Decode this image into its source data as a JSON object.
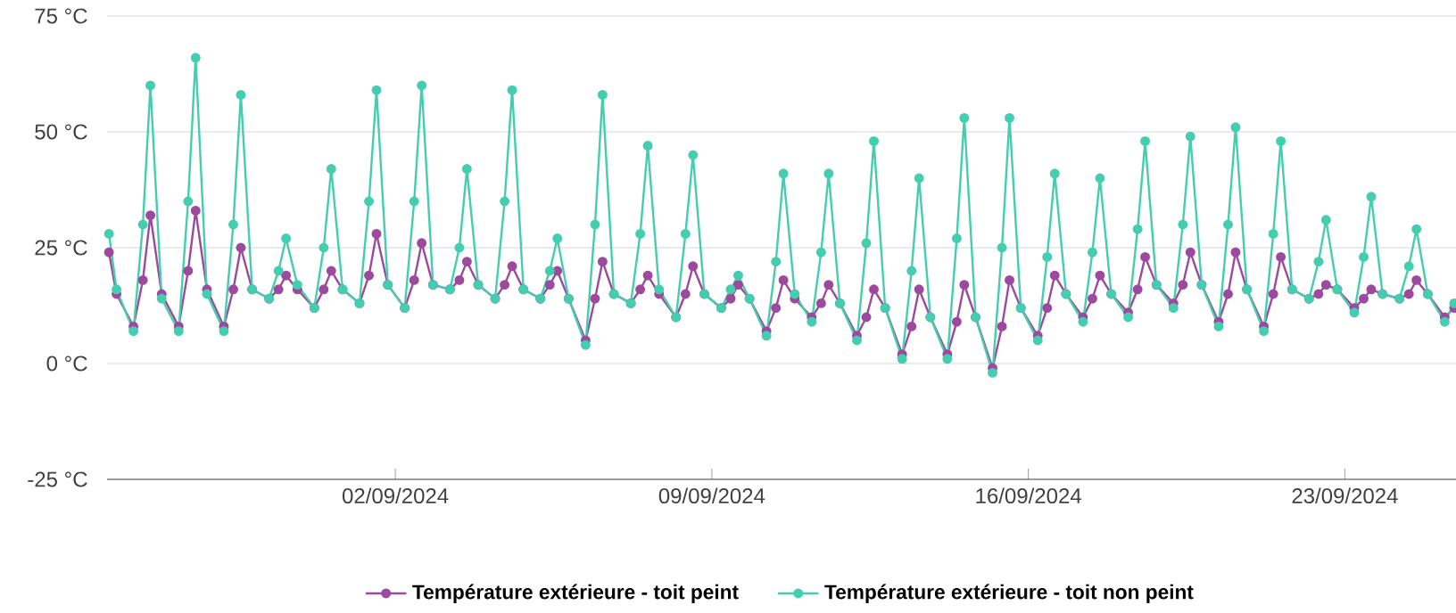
{
  "chart_data": {
    "type": "line",
    "x": [
      "2024-08-26T16:00",
      "2024-08-26T20:00",
      "2024-08-27T05:00",
      "2024-08-27T10:00",
      "2024-08-27T14:00",
      "2024-08-27T20:00",
      "2024-08-28T05:00",
      "2024-08-28T10:00",
      "2024-08-28T14:00",
      "2024-08-28T20:00",
      "2024-08-29T05:00",
      "2024-08-29T10:00",
      "2024-08-29T14:00",
      "2024-08-29T20:00",
      "2024-08-30T05:00",
      "2024-08-30T10:00",
      "2024-08-30T14:00",
      "2024-08-30T20:00",
      "2024-08-31T05:00",
      "2024-08-31T10:00",
      "2024-08-31T14:00",
      "2024-08-31T20:00",
      "2024-09-01T05:00",
      "2024-09-01T10:00",
      "2024-09-01T14:00",
      "2024-09-01T20:00",
      "2024-09-02T05:00",
      "2024-09-02T10:00",
      "2024-09-02T14:00",
      "2024-09-02T20:00",
      "2024-09-03T05:00",
      "2024-09-03T10:00",
      "2024-09-03T14:00",
      "2024-09-03T20:00",
      "2024-09-04T05:00",
      "2024-09-04T10:00",
      "2024-09-04T14:00",
      "2024-09-04T20:00",
      "2024-09-05T05:00",
      "2024-09-05T10:00",
      "2024-09-05T14:00",
      "2024-09-05T20:00",
      "2024-09-06T05:00",
      "2024-09-06T10:00",
      "2024-09-06T14:00",
      "2024-09-06T20:00",
      "2024-09-07T05:00",
      "2024-09-07T10:00",
      "2024-09-07T14:00",
      "2024-09-07T20:00",
      "2024-09-08T05:00",
      "2024-09-08T10:00",
      "2024-09-08T14:00",
      "2024-09-08T20:00",
      "2024-09-09T05:00",
      "2024-09-09T10:00",
      "2024-09-09T14:00",
      "2024-09-09T20:00",
      "2024-09-10T05:00",
      "2024-09-10T10:00",
      "2024-09-10T14:00",
      "2024-09-10T20:00",
      "2024-09-11T05:00",
      "2024-09-11T10:00",
      "2024-09-11T14:00",
      "2024-09-11T20:00",
      "2024-09-12T05:00",
      "2024-09-12T10:00",
      "2024-09-12T14:00",
      "2024-09-12T20:00",
      "2024-09-13T05:00",
      "2024-09-13T10:00",
      "2024-09-13T14:00",
      "2024-09-13T20:00",
      "2024-09-14T05:00",
      "2024-09-14T10:00",
      "2024-09-14T14:00",
      "2024-09-14T20:00",
      "2024-09-15T05:00",
      "2024-09-15T10:00",
      "2024-09-15T14:00",
      "2024-09-15T20:00",
      "2024-09-16T05:00",
      "2024-09-16T10:00",
      "2024-09-16T14:00",
      "2024-09-16T20:00",
      "2024-09-17T05:00",
      "2024-09-17T10:00",
      "2024-09-17T14:00",
      "2024-09-17T20:00",
      "2024-09-18T05:00",
      "2024-09-18T10:00",
      "2024-09-18T14:00",
      "2024-09-18T20:00",
      "2024-09-19T05:00",
      "2024-09-19T10:00",
      "2024-09-19T14:00",
      "2024-09-19T20:00",
      "2024-09-20T05:00",
      "2024-09-20T10:00",
      "2024-09-20T14:00",
      "2024-09-20T20:00",
      "2024-09-21T05:00",
      "2024-09-21T10:00",
      "2024-09-21T14:00",
      "2024-09-21T20:00",
      "2024-09-22T05:00",
      "2024-09-22T10:00",
      "2024-09-22T14:00",
      "2024-09-22T20:00",
      "2024-09-23T05:00",
      "2024-09-23T10:00",
      "2024-09-23T14:00",
      "2024-09-23T20:00",
      "2024-09-24T05:00",
      "2024-09-24T10:00",
      "2024-09-24T14:00",
      "2024-09-24T20:00",
      "2024-09-25T05:00",
      "2024-09-25T10:00"
    ],
    "series": [
      {
        "name": "Température extérieure - toit peint",
        "color": "#9b4a9e",
        "values": [
          24,
          15,
          8,
          18,
          32,
          15,
          8,
          20,
          33,
          16,
          8,
          16,
          25,
          16,
          14,
          16,
          19,
          16,
          12,
          16,
          20,
          16,
          13,
          19,
          28,
          17,
          12,
          18,
          26,
          17,
          16,
          18,
          22,
          17,
          14,
          17,
          21,
          16,
          14,
          17,
          20,
          14,
          5,
          14,
          22,
          15,
          13,
          16,
          19,
          15,
          10,
          15,
          21,
          15,
          12,
          14,
          17,
          14,
          7,
          12,
          18,
          14,
          10,
          13,
          17,
          13,
          6,
          10,
          16,
          12,
          2,
          8,
          16,
          10,
          2,
          9,
          17,
          10,
          -1,
          8,
          18,
          12,
          6,
          12,
          19,
          15,
          10,
          14,
          19,
          15,
          11,
          16,
          23,
          17,
          13,
          17,
          24,
          17,
          9,
          15,
          24,
          16,
          8,
          15,
          23,
          16,
          14,
          15,
          17,
          16,
          12,
          14,
          16,
          15,
          14,
          15,
          18,
          15,
          10,
          12
        ]
      },
      {
        "name": "Température extérieure - toit non peint",
        "color": "#45cdb0",
        "values": [
          28,
          16,
          7,
          30,
          60,
          14,
          7,
          35,
          66,
          15,
          7,
          30,
          58,
          16,
          14,
          20,
          27,
          17,
          12,
          25,
          42,
          16,
          13,
          35,
          59,
          17,
          12,
          35,
          60,
          17,
          16,
          25,
          42,
          17,
          14,
          35,
          59,
          16,
          14,
          20,
          27,
          14,
          4,
          30,
          58,
          15,
          13,
          28,
          47,
          16,
          10,
          28,
          45,
          15,
          12,
          16,
          19,
          14,
          6,
          22,
          41,
          15,
          9,
          24,
          41,
          13,
          5,
          26,
          48,
          12,
          1,
          20,
          40,
          10,
          1,
          27,
          53,
          10,
          -2,
          25,
          53,
          12,
          5,
          23,
          41,
          15,
          9,
          24,
          40,
          15,
          10,
          29,
          48,
          17,
          12,
          30,
          49,
          17,
          8,
          30,
          51,
          16,
          7,
          28,
          48,
          16,
          14,
          22,
          31,
          16,
          11,
          23,
          36,
          15,
          14,
          21,
          29,
          15,
          9,
          13
        ]
      }
    ],
    "xlim": [
      "2024-08-26T15:00",
      "2024-09-25T11:00"
    ],
    "xticks": [
      {
        "value": "2024-09-02",
        "label": "02/09/2024"
      },
      {
        "value": "2024-09-09",
        "label": "09/09/2024"
      },
      {
        "value": "2024-09-16",
        "label": "16/09/2024"
      },
      {
        "value": "2024-09-23",
        "label": "23/09/2024"
      }
    ],
    "ylim": [
      -25,
      75
    ],
    "yticks": [
      {
        "value": -25,
        "label": "-25 °C"
      },
      {
        "value": 0,
        "label": "0 °C"
      },
      {
        "value": 25,
        "label": "25 °C"
      },
      {
        "value": 50,
        "label": "50 °C"
      },
      {
        "value": 75,
        "label": "75 °C"
      }
    ],
    "grid": "y",
    "legend": "bottom",
    "marker": "circle",
    "line_style": "solid"
  }
}
